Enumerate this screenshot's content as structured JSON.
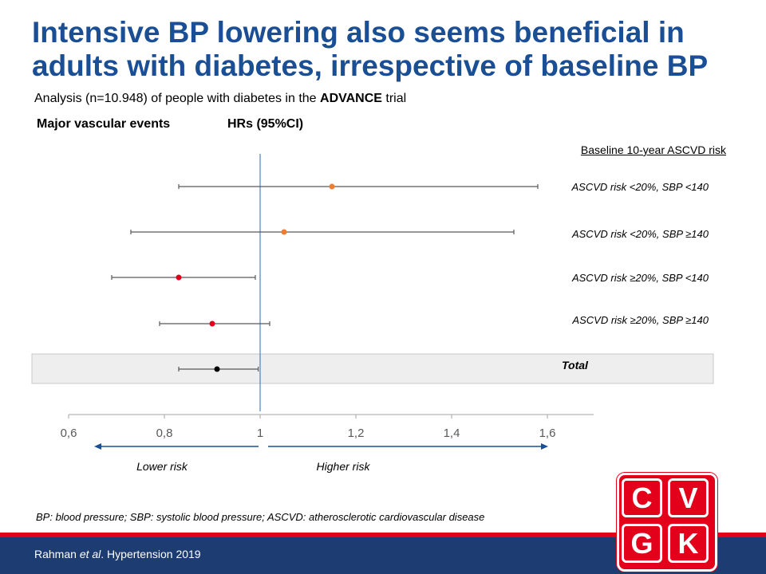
{
  "slide": {
    "title": "Intensive BP lowering also seems beneficial in adults with diabetes, irrespective of baseline BP",
    "subtitle_pre": "Analysis (n=10.948) of people with diabetes in the ",
    "subtitle_bold": "ADVANCE",
    "subtitle_post": " trial",
    "col_outcome": "Major vascular events",
    "col_hr": "HRs (95%CI)",
    "footnote": "BP: blood pressure; SBP: systolic blood pressure; ASCVD: atherosclerotic cardiovascular disease",
    "citation_pre": "Rahman ",
    "citation_italic": "et al",
    "citation_post": ". Hypertension 2019",
    "logo": [
      "C",
      "V",
      "G",
      "K"
    ]
  },
  "chart_data": {
    "type": "forest",
    "legend_title": "Baseline 10-year ASCVD risk",
    "rows": [
      {
        "label": "ASCVD risk <20%, SBP <140",
        "hr": 1.15,
        "lo": 0.83,
        "hi": 1.58,
        "color": "#ed7d31"
      },
      {
        "label": "ASCVD risk <20%, SBP ≥140",
        "hr": 1.05,
        "lo": 0.73,
        "hi": 1.53,
        "color": "#ed7d31"
      },
      {
        "label": "ASCVD risk ≥20%, SBP <140",
        "hr": 0.83,
        "lo": 0.69,
        "hi": 0.99,
        "color": "#e2001a"
      },
      {
        "label": "ASCVD risk ≥20%, SBP ≥140",
        "hr": 0.9,
        "lo": 0.79,
        "hi": 1.02,
        "color": "#e2001a"
      },
      {
        "label": "Total",
        "hr": 0.91,
        "lo": 0.83,
        "hi": 0.996,
        "color": "#000000"
      }
    ],
    "xlim": [
      0.6,
      1.7
    ],
    "x_ticks": [
      0.6,
      0.8,
      1.0,
      1.2,
      1.4,
      1.6
    ],
    "x_tick_labels": [
      "0,6",
      "0,8",
      "1",
      "1,2",
      "1,4",
      "1,6"
    ],
    "reference_line": 1.0,
    "lower_label": "Lower risk",
    "higher_label": "Higher risk",
    "colors": {
      "reference": "#4f81bd",
      "arrow": "#1a4e95",
      "total_band": "#eeeeee"
    }
  }
}
